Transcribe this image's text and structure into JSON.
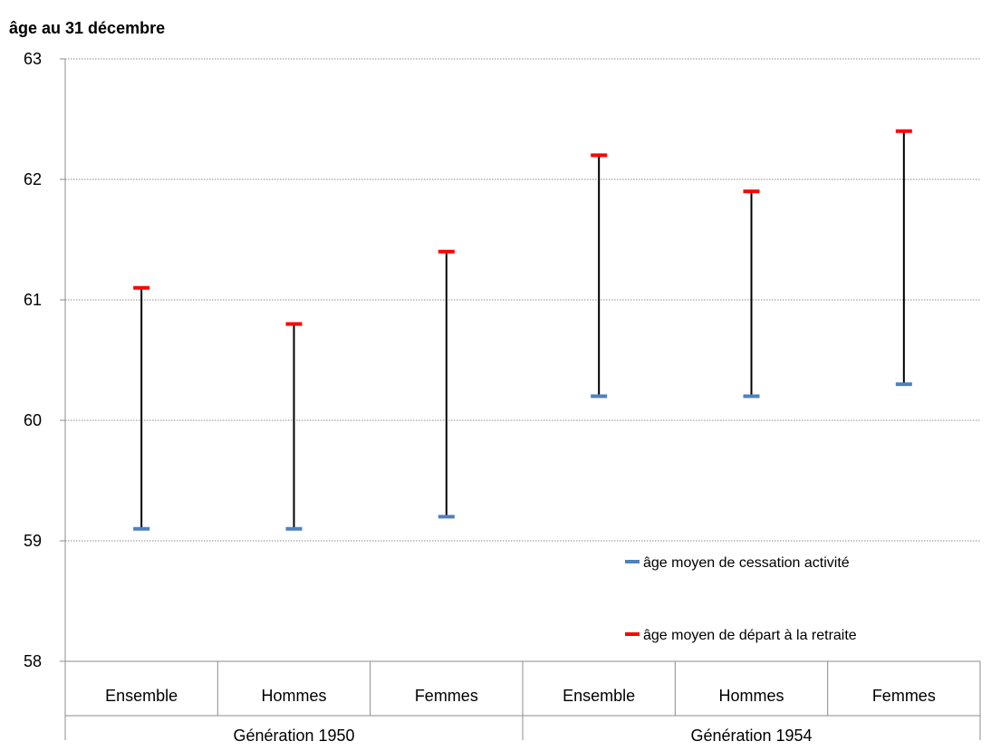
{
  "chart_data": {
    "type": "range",
    "ylabel": "âge au 31 décembre",
    "ylim": [
      58,
      63
    ],
    "yticks": [
      58,
      59,
      60,
      61,
      62,
      63
    ],
    "grid": true,
    "groups": [
      {
        "label": "Génération 1950",
        "categories": [
          "Ensemble",
          "Hommes",
          "Femmes"
        ]
      },
      {
        "label": "Génération 1954",
        "categories": [
          "Ensemble",
          "Hommes",
          "Femmes"
        ]
      }
    ],
    "series": [
      {
        "name": "âge moyen de cessation activité",
        "color": "#4f81bd",
        "values": [
          59.1,
          59.1,
          59.2,
          60.2,
          60.2,
          60.3
        ]
      },
      {
        "name": "âge moyen de départ à la retraite",
        "color": "#ff0000",
        "values": [
          61.1,
          60.8,
          61.4,
          62.2,
          61.9,
          62.4
        ]
      }
    ],
    "legend_position": "bottom-right"
  }
}
